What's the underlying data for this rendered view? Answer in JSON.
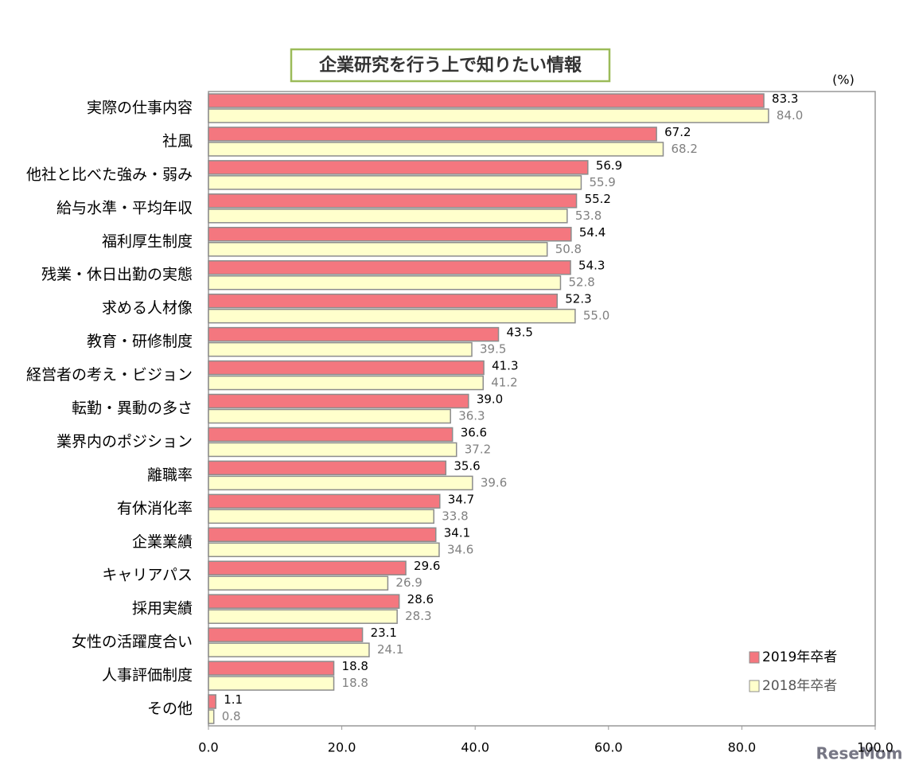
{
  "chart_data": {
    "type": "hbar",
    "title": "企業研究を行う上で知りたい情報",
    "unit_label": "(%)",
    "watermark": "ReseMom",
    "categories": [
      "実際の仕事内容",
      "社風",
      "他社と比べた強み・弱み",
      "給与水準・平均年収",
      "福利厚生制度",
      "残業・休日出勤の実態",
      "求める人材像",
      "教育・研修制度",
      "経営者の考え・ビジョン",
      "転勤・異動の多さ",
      "業界内のポジション",
      "離職率",
      "有休消化率",
      "企業業績",
      "キャリアパス",
      "採用実績",
      "女性の活躍度合い",
      "人事評価制度",
      "その他"
    ],
    "series": [
      {
        "name": "2019年卒者",
        "color": "#f4777f",
        "label_color": "#000000",
        "values": [
          83.3,
          67.2,
          56.9,
          55.2,
          54.4,
          54.3,
          52.3,
          43.5,
          41.3,
          39.0,
          36.6,
          35.6,
          34.7,
          34.1,
          29.6,
          28.6,
          23.1,
          18.8,
          1.1
        ],
        "value_labels": [
          "83.3",
          "67.2",
          "56.9",
          "55.2",
          "54.4",
          "54.3",
          "52.3",
          "43.5",
          "41.3",
          "39.0",
          "36.6",
          "35.6",
          "34.7",
          "34.1",
          "29.6",
          "28.6",
          "23.1",
          "18.8",
          "1.1"
        ]
      },
      {
        "name": "2018年卒者",
        "color": "#ffffcc",
        "label_color": "#808080",
        "values": [
          84.0,
          68.2,
          55.9,
          53.8,
          50.8,
          52.8,
          55.0,
          39.5,
          41.2,
          36.3,
          37.2,
          39.6,
          33.8,
          34.6,
          26.9,
          28.3,
          24.1,
          18.8,
          0.8
        ],
        "value_labels": [
          "84.0",
          "68.2",
          "55.9",
          "53.8",
          "50.8",
          "52.8",
          "55.0",
          "39.5",
          "41.2",
          "36.3",
          "37.2",
          "39.6",
          "33.8",
          "34.6",
          "26.9",
          "28.3",
          "24.1",
          "18.8",
          "0.8"
        ]
      }
    ],
    "xlim": [
      0,
      100
    ],
    "xticks": [
      {
        "value": 0,
        "label": "0.0"
      },
      {
        "value": 20,
        "label": "20.0"
      },
      {
        "value": 40,
        "label": "40.0"
      },
      {
        "value": 60,
        "label": "60.0"
      },
      {
        "value": 80,
        "label": "80.0"
      },
      {
        "value": 100,
        "label": "100.0"
      }
    ],
    "legend": "lower right",
    "grid": false
  }
}
